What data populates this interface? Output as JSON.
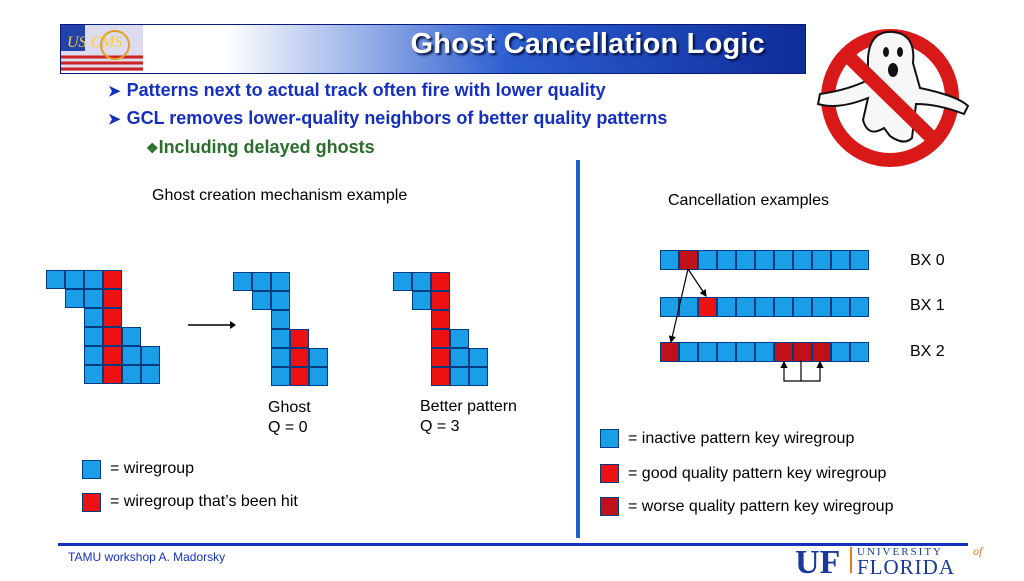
{
  "header": {
    "title": "Ghost Cancellation Logic",
    "logo_text": "US CMS"
  },
  "bullets": [
    "Patterns next to actual track often fire with lower quality",
    "GCL removes lower-quality neighbors of better quality patterns"
  ],
  "sub_bullet": "Including delayed ghosts",
  "left_panel": {
    "heading": "Ghost creation mechanism example",
    "ghost_label": [
      "Ghost",
      "Q = 0"
    ],
    "better_label": [
      "Better pattern",
      "Q = 3"
    ],
    "legend": [
      {
        "text": "= wiregroup",
        "color": "#1a9ee8"
      },
      {
        "text": "= wiregroup that’s been hit",
        "color": "#ee1111"
      }
    ]
  },
  "right_panel": {
    "heading": "Cancellation examples",
    "rows": [
      "BX 0",
      "BX 1",
      "BX 2"
    ],
    "legend": [
      {
        "text": "= inactive pattern key wiregroup",
        "color": "#1a9ee8"
      },
      {
        "text": "= good quality pattern key wiregroup",
        "color": "#ee1111"
      },
      {
        "text": "= worse quality pattern key wiregroup",
        "color": "#c0101a"
      }
    ]
  },
  "footer": {
    "text": "TAMU workshop A. Madorsky",
    "uf_mark": "UF",
    "uf_top": "UNIVERSITY",
    "uf_of": "of",
    "uf_bottom": "FLORIDA"
  }
}
